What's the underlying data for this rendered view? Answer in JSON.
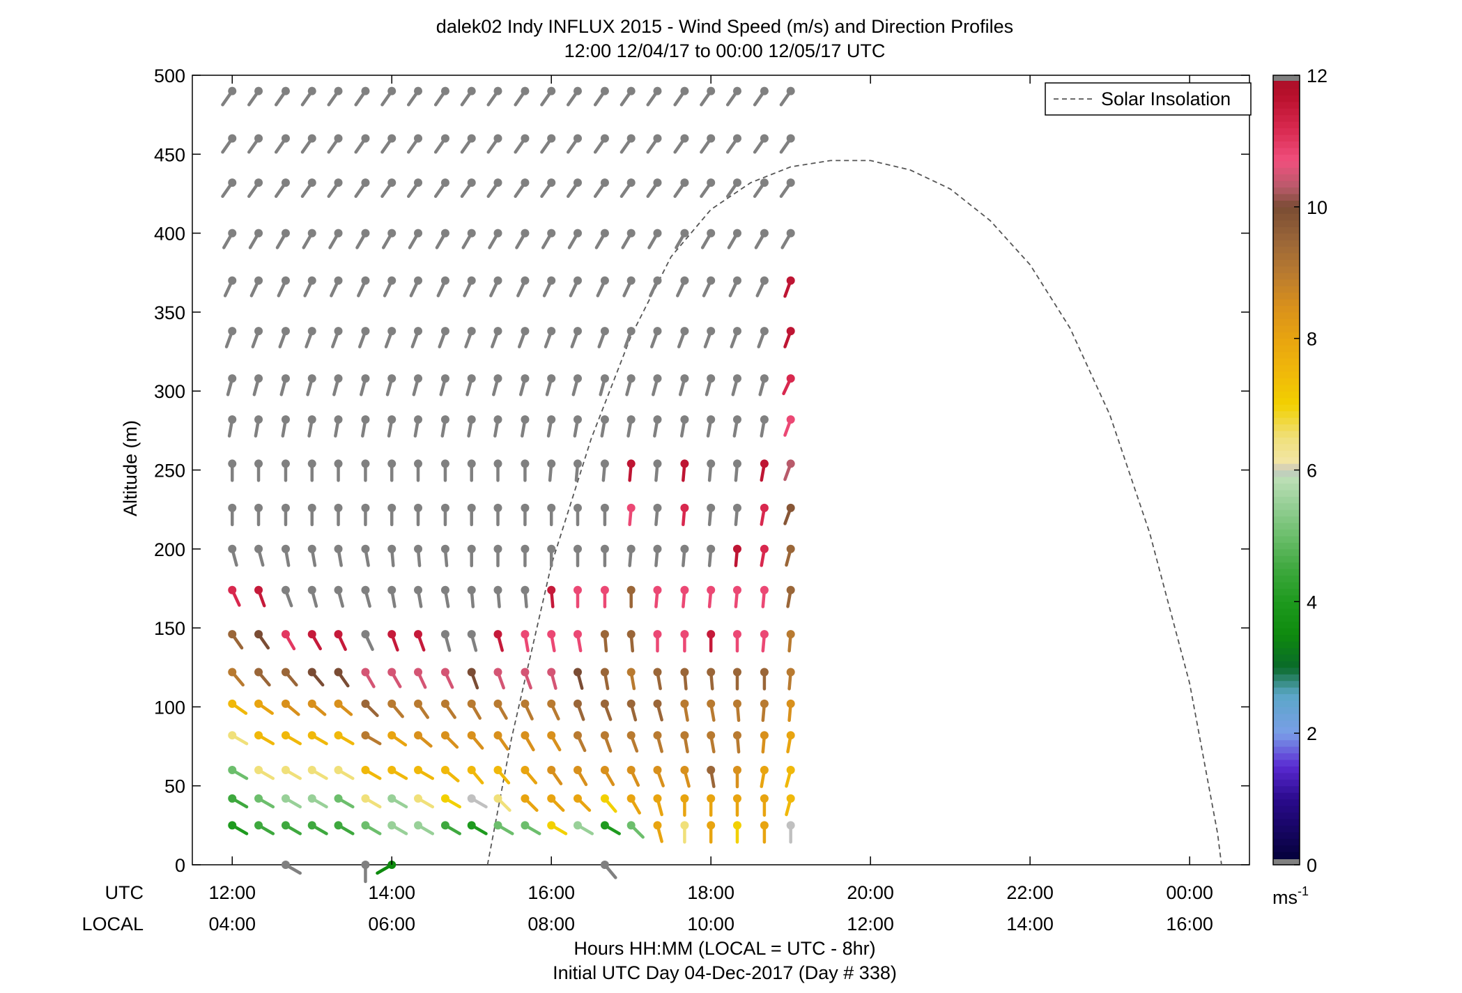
{
  "chart_data": {
    "type": "wind-barb-profile",
    "title": "dalek02 Indy INFLUX 2015 - Wind Speed (m/s) and Direction Profiles",
    "subtitle": "12:00 12/04/17 to 00:00 12/05/17  UTC",
    "ylabel": "Altitude (m)",
    "xlabel": "Hours HH:MM  (LOCAL = UTC - 8hr)",
    "xlabel2": "Initial UTC Day 04-Dec-2017 (Day # 338)",
    "row_label_utc": "UTC",
    "row_label_local": "LOCAL",
    "ylim": [
      0,
      500
    ],
    "xlim_hours": [
      11.5,
      24.75
    ],
    "yticks": [
      0,
      50,
      100,
      150,
      200,
      250,
      300,
      350,
      400,
      450,
      500
    ],
    "xticks": [
      {
        "hour": 12,
        "utc": "12:00",
        "local": "04:00"
      },
      {
        "hour": 14,
        "utc": "14:00",
        "local": "06:00"
      },
      {
        "hour": 16,
        "utc": "16:00",
        "local": "08:00"
      },
      {
        "hour": 18,
        "utc": "18:00",
        "local": "10:00"
      },
      {
        "hour": 20,
        "utc": "20:00",
        "local": "12:00"
      },
      {
        "hour": 22,
        "utc": "22:00",
        "local": "14:00"
      },
      {
        "hour": 24,
        "utc": "00:00",
        "local": "16:00"
      }
    ],
    "legend": {
      "label": "Solar Insolation",
      "position": "top-right"
    },
    "colorbar": {
      "min": 0,
      "max": 12,
      "ticks": [
        0,
        2,
        4,
        6,
        8,
        10,
        12
      ],
      "unit": "ms",
      "unit_sup": "-1"
    },
    "times_hours": [
      12.0,
      12.33,
      12.67,
      13.0,
      13.33,
      13.67,
      14.0,
      14.33,
      14.67,
      15.0,
      15.33,
      15.67,
      16.0,
      16.33,
      16.67,
      17.0,
      17.33,
      17.67,
      18.0,
      18.33,
      18.67,
      19.0
    ],
    "altitudes_m": [
      25,
      42,
      60,
      82,
      102,
      122,
      146,
      174,
      200,
      226,
      254,
      282,
      308,
      338,
      370,
      400,
      432,
      460,
      490
    ],
    "missing_speed_color": "#808080",
    "missing_angle_deg": 210,
    "missing_from_row": 8,
    "speed_rows": [
      [
        4,
        4.5,
        4.5,
        4.5,
        4.5,
        5,
        5.5,
        5.5,
        4.5,
        4,
        5,
        5,
        7,
        5.5,
        4,
        5,
        8,
        6.5,
        8,
        7,
        8,
        6
      ],
      [
        4.5,
        5,
        5.5,
        5.5,
        5,
        6.5,
        5.5,
        6.5,
        7,
        6,
        6.5,
        8,
        8,
        8,
        7,
        8,
        8,
        8,
        8,
        8,
        8,
        7.5
      ],
      [
        5,
        6.5,
        6.5,
        6.5,
        6.5,
        7.5,
        7.5,
        7.5,
        7.5,
        7.5,
        7.5,
        8,
        8.5,
        8.5,
        8.5,
        8.5,
        8.5,
        8.5,
        9.5,
        8.5,
        8,
        7.5
      ],
      [
        6.5,
        7.5,
        7.5,
        7.5,
        7.5,
        9,
        8,
        8.5,
        8.5,
        8.5,
        8.5,
        8.5,
        8.5,
        9,
        9,
        9,
        9,
        9,
        9,
        9,
        8.5,
        8
      ],
      [
        7.5,
        8,
        8.5,
        8.5,
        8.5,
        9.5,
        9,
        9,
        9,
        9,
        9,
        9,
        9,
        9.5,
        9.5,
        9.5,
        9.5,
        9,
        9,
        9,
        9,
        8.5
      ],
      [
        9,
        9.5,
        9.5,
        10,
        10,
        10.5,
        10.5,
        10.5,
        10.5,
        10,
        10.5,
        10.5,
        10.5,
        10,
        9.5,
        9,
        9.5,
        9.5,
        9.5,
        9.5,
        9.5,
        9
      ],
      [
        9.5,
        10,
        11,
        11.5,
        11.5,
        null,
        11.5,
        11.5,
        null,
        null,
        11.5,
        10.8,
        10.8,
        10.8,
        9.5,
        9.5,
        10.8,
        10.8,
        11.5,
        10.8,
        10.8,
        9
      ],
      [
        11.2,
        11.5,
        null,
        null,
        null,
        null,
        null,
        null,
        null,
        null,
        null,
        null,
        11.5,
        10.8,
        10.8,
        9.5,
        10.8,
        10.8,
        10.8,
        10.8,
        10.8,
        9.5
      ],
      [
        null,
        null,
        null,
        null,
        null,
        null,
        null,
        null,
        null,
        null,
        null,
        null,
        null,
        null,
        null,
        null,
        null,
        null,
        null,
        11.6,
        11.2,
        9.5
      ],
      [
        null,
        null,
        null,
        null,
        null,
        null,
        null,
        null,
        null,
        null,
        null,
        null,
        null,
        null,
        null,
        10.8,
        null,
        11.2,
        null,
        null,
        11.2,
        9.8
      ],
      [
        null,
        null,
        null,
        null,
        null,
        null,
        null,
        null,
        null,
        null,
        null,
        null,
        null,
        null,
        null,
        11.6,
        null,
        11.6,
        null,
        null,
        11.6,
        10.3
      ],
      [
        null,
        null,
        null,
        null,
        null,
        null,
        null,
        null,
        null,
        null,
        null,
        null,
        null,
        null,
        null,
        null,
        null,
        null,
        null,
        null,
        null,
        10.8
      ],
      [
        null,
        null,
        null,
        null,
        null,
        null,
        null,
        null,
        null,
        null,
        null,
        null,
        null,
        null,
        null,
        null,
        null,
        null,
        null,
        null,
        null,
        11.2
      ],
      [
        null,
        null,
        null,
        null,
        null,
        null,
        null,
        null,
        null,
        null,
        null,
        null,
        null,
        null,
        null,
        null,
        null,
        null,
        null,
        null,
        null,
        11.6
      ],
      [
        null,
        null,
        null,
        null,
        null,
        null,
        null,
        null,
        null,
        null,
        null,
        null,
        null,
        null,
        null,
        null,
        null,
        null,
        null,
        null,
        null,
        11.6
      ],
      [
        null,
        null,
        null,
        null,
        null,
        null,
        null,
        null,
        null,
        null,
        null,
        null,
        null,
        null,
        null,
        null,
        null,
        null,
        null,
        null,
        null,
        null
      ],
      [
        null,
        null,
        null,
        null,
        null,
        null,
        null,
        null,
        null,
        null,
        null,
        null,
        null,
        null,
        null,
        null,
        null,
        null,
        null,
        null,
        null,
        null
      ],
      [
        null,
        null,
        null,
        null,
        null,
        null,
        null,
        null,
        null,
        null,
        null,
        null,
        null,
        null,
        null,
        null,
        null,
        null,
        null,
        null,
        null,
        null
      ],
      [
        null,
        null,
        null,
        null,
        null,
        null,
        null,
        null,
        null,
        null,
        null,
        null,
        null,
        null,
        null,
        null,
        null,
        null,
        null,
        null,
        null,
        null
      ]
    ],
    "angle_rows": [
      [
        300,
        300,
        300,
        300,
        300,
        300,
        300,
        300,
        300,
        300,
        300,
        300,
        300,
        300,
        300,
        315,
        345,
        0,
        0,
        0,
        0,
        0
      ],
      [
        300,
        300,
        300,
        300,
        300,
        300,
        300,
        300,
        300,
        300,
        315,
        315,
        315,
        315,
        320,
        330,
        345,
        0,
        0,
        0,
        0,
        15
      ],
      [
        300,
        300,
        300,
        300,
        300,
        300,
        300,
        300,
        310,
        320,
        320,
        320,
        325,
        330,
        330,
        335,
        340,
        345,
        350,
        0,
        10,
        15
      ],
      [
        300,
        300,
        300,
        300,
        300,
        300,
        305,
        310,
        315,
        320,
        325,
        330,
        330,
        335,
        340,
        340,
        345,
        350,
        350,
        355,
        5,
        10
      ],
      [
        305,
        305,
        310,
        310,
        310,
        315,
        320,
        325,
        325,
        330,
        330,
        335,
        335,
        340,
        340,
        345,
        345,
        350,
        350,
        355,
        5,
        5
      ],
      [
        320,
        320,
        320,
        320,
        325,
        330,
        330,
        335,
        335,
        340,
        340,
        340,
        345,
        345,
        350,
        350,
        350,
        355,
        355,
        0,
        0,
        5
      ],
      [
        325,
        325,
        330,
        330,
        335,
        335,
        340,
        340,
        345,
        345,
        345,
        350,
        350,
        350,
        355,
        355,
        0,
        0,
        0,
        0,
        5,
        5
      ],
      [
        335,
        340,
        340,
        345,
        345,
        345,
        350,
        350,
        350,
        355,
        355,
        355,
        355,
        0,
        0,
        0,
        5,
        5,
        5,
        5,
        5,
        10
      ],
      [
        345,
        345,
        350,
        350,
        350,
        350,
        355,
        355,
        355,
        0,
        0,
        0,
        0,
        0,
        0,
        5,
        5,
        5,
        5,
        5,
        10,
        15
      ],
      [
        0,
        0,
        0,
        0,
        0,
        0,
        0,
        0,
        0,
        0,
        0,
        0,
        0,
        0,
        0,
        5,
        5,
        5,
        5,
        5,
        10,
        20
      ],
      [
        0,
        0,
        0,
        0,
        0,
        0,
        0,
        0,
        0,
        0,
        0,
        0,
        5,
        5,
        5,
        5,
        5,
        5,
        5,
        5,
        10,
        20
      ],
      [
        10,
        10,
        10,
        10,
        10,
        10,
        10,
        10,
        10,
        10,
        10,
        10,
        10,
        10,
        10,
        10,
        10,
        10,
        10,
        10,
        10,
        20
      ],
      [
        15,
        15,
        15,
        15,
        15,
        15,
        15,
        15,
        15,
        15,
        15,
        15,
        15,
        15,
        15,
        15,
        15,
        15,
        15,
        15,
        15,
        25
      ],
      [
        20,
        20,
        20,
        20,
        20,
        20,
        20,
        20,
        20,
        20,
        20,
        20,
        20,
        20,
        20,
        20,
        20,
        20,
        20,
        20,
        20,
        20
      ],
      [
        25,
        25,
        25,
        25,
        25,
        25,
        25,
        25,
        25,
        25,
        25,
        25,
        25,
        25,
        25,
        25,
        25,
        25,
        25,
        25,
        25,
        20
      ],
      [
        30,
        30,
        30,
        30,
        30,
        30,
        30,
        30,
        30,
        30,
        30,
        30,
        30,
        30,
        30,
        30,
        30,
        30,
        30,
        30,
        30,
        30
      ],
      [
        35,
        35,
        35,
        35,
        35,
        35,
        35,
        35,
        35,
        35,
        35,
        35,
        35,
        35,
        35,
        35,
        35,
        35,
        35,
        35,
        35,
        35
      ],
      [
        35,
        35,
        35,
        35,
        35,
        35,
        35,
        35,
        35,
        35,
        35,
        35,
        35,
        35,
        35,
        35,
        35,
        35,
        35,
        35,
        35,
        35
      ],
      [
        35,
        35,
        35,
        35,
        35,
        35,
        35,
        35,
        35,
        35,
        35,
        35,
        35,
        35,
        35,
        35,
        35,
        35,
        35,
        35,
        35,
        35
      ]
    ],
    "surface_barbs": [
      {
        "hour": 12.67,
        "speed": null,
        "angle_deg": 300
      },
      {
        "hour": 13.67,
        "speed": null,
        "angle_deg": 0
      },
      {
        "hour": 14.0,
        "speed": 3.5,
        "angle_deg": 60
      },
      {
        "hour": 16.67,
        "speed": null,
        "angle_deg": 320
      }
    ],
    "solar_insolation_curve": [
      [
        15.2,
        0
      ],
      [
        15.5,
        80
      ],
      [
        16,
        190
      ],
      [
        16.5,
        270
      ],
      [
        17,
        335
      ],
      [
        17.5,
        385
      ],
      [
        18,
        415
      ],
      [
        18.5,
        432
      ],
      [
        19,
        442
      ],
      [
        19.5,
        446
      ],
      [
        20,
        446
      ],
      [
        20.5,
        440
      ],
      [
        21,
        428
      ],
      [
        21.5,
        408
      ],
      [
        22,
        380
      ],
      [
        22.5,
        340
      ],
      [
        23,
        285
      ],
      [
        23.5,
        210
      ],
      [
        24,
        115
      ],
      [
        24.35,
        20
      ],
      [
        24.4,
        0
      ]
    ],
    "colormap_stops": [
      [
        0,
        "#000033"
      ],
      [
        1,
        "#2a0a8c"
      ],
      [
        1.5,
        "#5a2ad2"
      ],
      [
        2,
        "#7a9ee8"
      ],
      [
        2.6,
        "#5aa7c6"
      ],
      [
        3,
        "#0a6a2a"
      ],
      [
        3.5,
        "#0e8a0e"
      ],
      [
        4,
        "#1e9a1e"
      ],
      [
        4.5,
        "#3ea83e"
      ],
      [
        5,
        "#6cbe6c"
      ],
      [
        5.5,
        "#98d098"
      ],
      [
        5.9,
        "#bfe0b8"
      ],
      [
        6.0,
        "#c0c0c0"
      ],
      [
        6.1,
        "#f2e6a8"
      ],
      [
        6.5,
        "#f0e07a"
      ],
      [
        7,
        "#f2d000"
      ],
      [
        7.5,
        "#f0b80a"
      ],
      [
        8,
        "#e8a410"
      ],
      [
        8.5,
        "#d8901c"
      ],
      [
        9,
        "#b87a30"
      ],
      [
        9.5,
        "#9a6638"
      ],
      [
        10,
        "#7a4c34"
      ],
      [
        10.3,
        "#b85a6a"
      ],
      [
        10.7,
        "#f0507e"
      ],
      [
        11.2,
        "#d8284e"
      ],
      [
        11.7,
        "#b8102c"
      ],
      [
        12,
        "#a81028"
      ]
    ]
  }
}
